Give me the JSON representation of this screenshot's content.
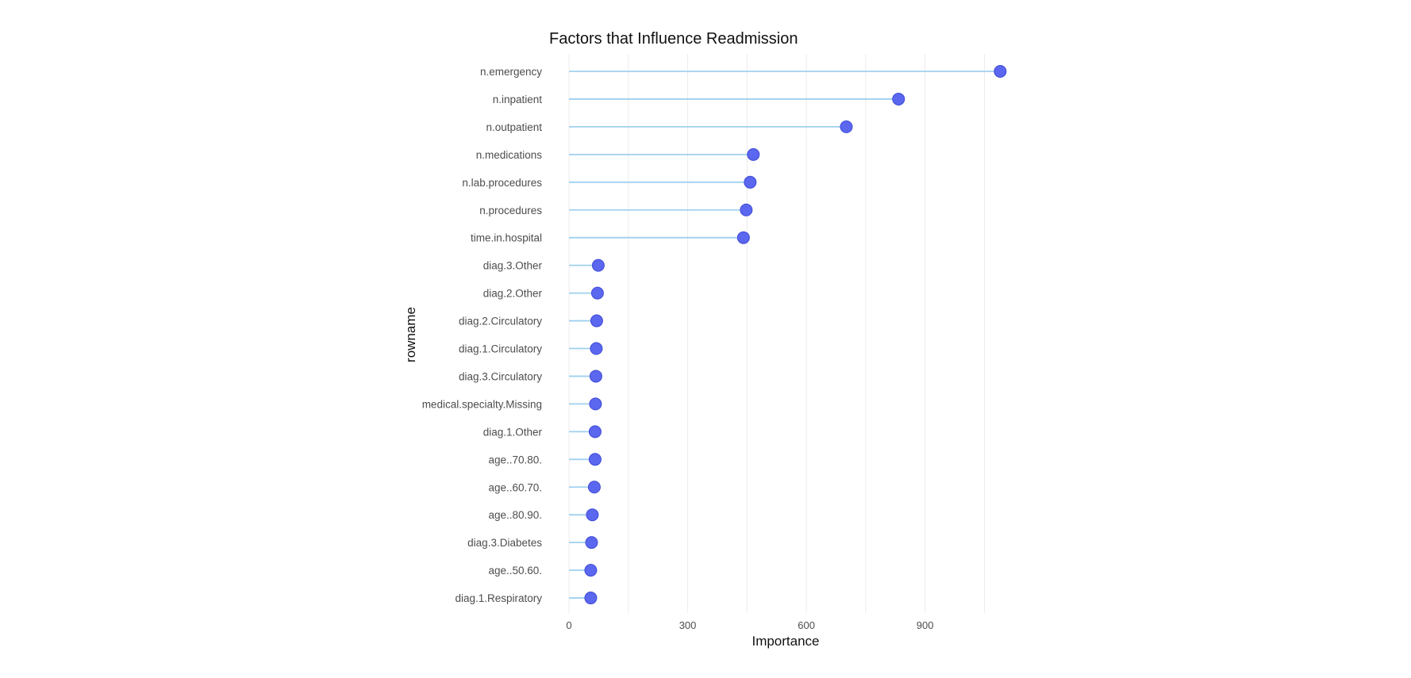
{
  "chart_data": {
    "type": "lollipop",
    "title": "Factors that Influence Readmission",
    "xlabel": "Importance",
    "ylabel": "rowname",
    "xlim": [
      0,
      1100
    ],
    "xticks": [
      0,
      300,
      600,
      900
    ],
    "xtick_labels": [
      "0",
      "300",
      "600",
      "900"
    ],
    "grid": true,
    "colors": {
      "stem": "#9fd0ee",
      "dot": "#5b67ee"
    },
    "categories": [
      "n.emergency",
      "n.inpatient",
      "n.outpatient",
      "n.medications",
      "n.lab.procedures",
      "n.procedures",
      "time.in.hospital",
      "diag.3.Other",
      "diag.2.Other",
      "diag.2.Circulatory",
      "diag.1.Circulatory",
      "diag.3.Circulatory",
      "medical.specialty.Missing",
      "diag.1.Other",
      "age..70.80.",
      "age..60.70.",
      "age..80.90.",
      "diag.3.Diabetes",
      "age..50.60.",
      "diag.1.Respiratory"
    ],
    "values": [
      1090,
      833,
      701,
      466,
      458,
      448,
      441,
      74,
      72,
      70,
      69,
      68,
      67,
      66,
      66,
      64,
      59,
      57,
      55,
      55
    ]
  }
}
